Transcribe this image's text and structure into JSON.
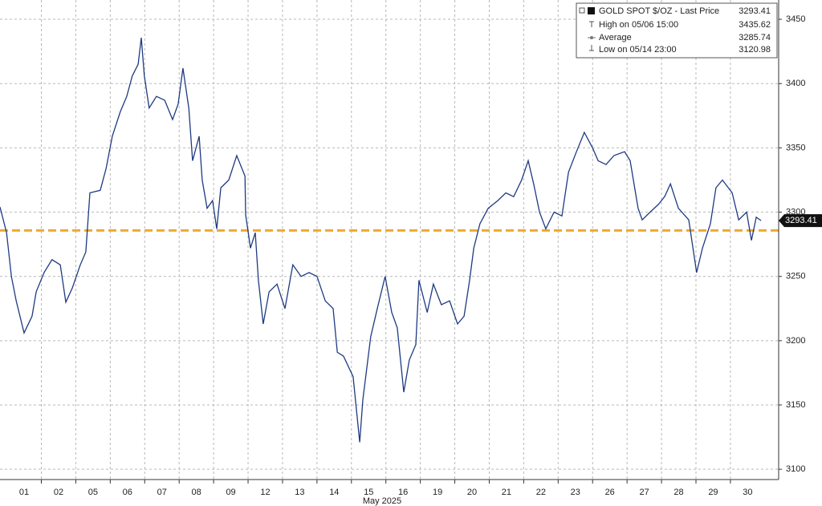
{
  "chart_data": {
    "type": "line",
    "xlabel": "May 2025",
    "xlim": [
      -0.2,
      22.4
    ],
    "xticks": [
      {
        "value": 0.5,
        "label": "01"
      },
      {
        "value": 1.5,
        "label": "02"
      },
      {
        "value": 2.5,
        "label": "05"
      },
      {
        "value": 3.5,
        "label": "06"
      },
      {
        "value": 4.5,
        "label": "07"
      },
      {
        "value": 5.5,
        "label": "08"
      },
      {
        "value": 6.5,
        "label": "09"
      },
      {
        "value": 7.5,
        "label": "12"
      },
      {
        "value": 8.5,
        "label": "13"
      },
      {
        "value": 9.5,
        "label": "14"
      },
      {
        "value": 10.5,
        "label": "15"
      },
      {
        "value": 11.5,
        "label": "16"
      },
      {
        "value": 12.5,
        "label": "19"
      },
      {
        "value": 13.5,
        "label": "20"
      },
      {
        "value": 14.5,
        "label": "21"
      },
      {
        "value": 15.5,
        "label": "22"
      },
      {
        "value": 16.5,
        "label": "23"
      },
      {
        "value": 17.5,
        "label": "26"
      },
      {
        "value": 18.5,
        "label": "27"
      },
      {
        "value": 19.5,
        "label": "28"
      },
      {
        "value": 20.5,
        "label": "29"
      },
      {
        "value": 21.5,
        "label": "30"
      }
    ],
    "ylim": [
      3092,
      3465
    ],
    "yticks": [
      3100,
      3150,
      3200,
      3250,
      3300,
      3350,
      3400,
      3450
    ],
    "grid": true,
    "legend": "top-right",
    "series": [
      {
        "name": "GOLD SPOT $/OZ - Last Price",
        "color": "#1e3a82",
        "x": [
          -0.2,
          -0.01,
          0.13,
          0.27,
          0.5,
          0.73,
          0.85,
          1.08,
          1.31,
          1.55,
          1.71,
          1.9,
          2.13,
          2.29,
          2.41,
          2.71,
          2.88,
          3.06,
          3.29,
          3.48,
          3.64,
          3.81,
          3.9,
          3.99,
          4.13,
          4.34,
          4.58,
          4.81,
          4.97,
          5.11,
          5.28,
          5.39,
          5.58,
          5.67,
          5.81,
          5.97,
          6.09,
          6.21,
          6.44,
          6.67,
          6.91,
          6.93,
          7.07,
          7.21,
          7.3,
          7.44,
          7.61,
          7.84,
          8.07,
          8.3,
          8.54,
          8.77,
          9.0,
          9.24,
          9.47,
          9.59,
          9.77,
          10.05,
          10.24,
          10.33,
          10.56,
          10.75,
          10.98,
          11.17,
          11.33,
          11.52,
          11.68,
          11.87,
          11.96,
          12.2,
          12.38,
          12.61,
          12.85,
          13.08,
          13.27,
          13.43,
          13.55,
          13.73,
          13.97,
          14.25,
          14.48,
          14.71,
          14.94,
          15.13,
          15.29,
          15.46,
          15.64,
          15.88,
          16.11,
          16.3,
          16.53,
          16.76,
          17.0,
          17.16,
          17.39,
          17.62,
          17.93,
          18.09,
          18.32,
          18.44,
          18.67,
          18.91,
          19.09,
          19.26,
          19.49,
          19.79,
          20.02,
          20.19,
          20.42,
          20.58,
          20.77,
          21.05,
          21.24,
          21.47,
          21.61,
          21.75,
          21.89
        ],
        "values": [
          3304,
          3284,
          3250,
          3231,
          3206,
          3219,
          3238,
          3253,
          3263,
          3259,
          3230,
          3241,
          3259,
          3269,
          3315,
          3317,
          3334,
          3359,
          3378,
          3390,
          3406,
          3415,
          3435.62,
          3406,
          3381,
          3390,
          3387,
          3372,
          3384,
          3412,
          3381,
          3340,
          3359,
          3325,
          3303,
          3309,
          3287,
          3319,
          3325,
          3344,
          3328,
          3298,
          3272,
          3284,
          3247,
          3213,
          3238,
          3244,
          3225,
          3259,
          3250,
          3253,
          3250,
          3231,
          3225,
          3191,
          3188,
          3172,
          3120.98,
          3154,
          3203,
          3225,
          3250,
          3222,
          3210,
          3160,
          3185,
          3197,
          3247,
          3222,
          3244,
          3228,
          3231,
          3213,
          3219,
          3247,
          3272,
          3291,
          3303,
          3309,
          3315,
          3312,
          3325,
          3340,
          3322,
          3300,
          3287,
          3300,
          3297,
          3331,
          3347,
          3362,
          3350,
          3340,
          3337,
          3344,
          3347,
          3340,
          3303,
          3294,
          3300,
          3306,
          3312,
          3322,
          3303,
          3294,
          3253,
          3272,
          3291,
          3319,
          3325,
          3315,
          3294,
          3300,
          3278,
          3296,
          3293.41
        ]
      }
    ],
    "high": {
      "label": "High on 05/06 15:00",
      "value": 3435.62
    },
    "average": {
      "label": "Average",
      "value": 3285.74,
      "color": "#f0a830"
    },
    "low": {
      "label": "Low on 05/14 23:00",
      "value": 3120.98
    }
  }
}
